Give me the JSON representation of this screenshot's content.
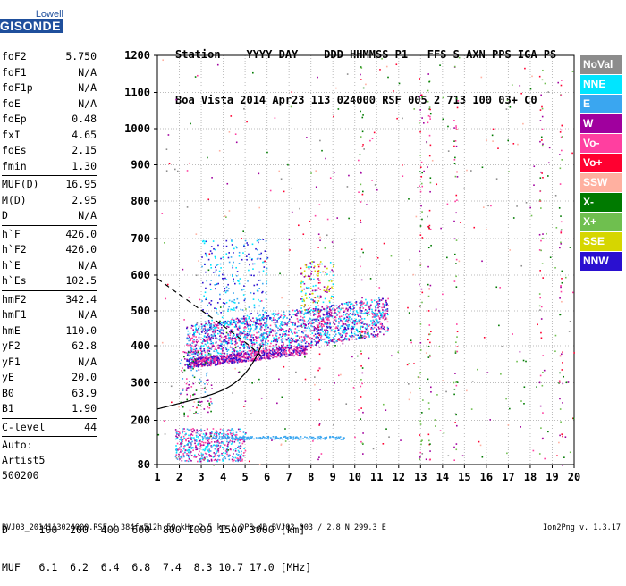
{
  "logo": {
    "line1": "Lowell",
    "line2": "DIGISONDE"
  },
  "header": {
    "line1": "Station    YYYY DAY    DDD HHMMSS P1   FFS S AXN PPS IGA PS",
    "line2": "Boa Vista 2014 Apr23 113 024000 RSF 005 2 713 100 03+ C0"
  },
  "params_group1": [
    {
      "k": "foF2",
      "v": "5.750"
    },
    {
      "k": "foF1",
      "v": "N/A"
    },
    {
      "k": "foF1p",
      "v": "N/A"
    },
    {
      "k": "foE",
      "v": "N/A"
    },
    {
      "k": "foEp",
      "v": "0.48"
    },
    {
      "k": "fxI",
      "v": "4.65"
    },
    {
      "k": "foEs",
      "v": "2.15"
    },
    {
      "k": "fmin",
      "v": "1.30"
    }
  ],
  "params_group2": [
    {
      "k": "MUF(D)",
      "v": "16.95"
    },
    {
      "k": "M(D)",
      "v": "2.95"
    },
    {
      "k": "D",
      "v": "N/A"
    }
  ],
  "params_group3": [
    {
      "k": "h`F",
      "v": "426.0"
    },
    {
      "k": "h`F2",
      "v": "426.0"
    },
    {
      "k": "h`E",
      "v": "N/A"
    },
    {
      "k": "h`Es",
      "v": "102.5"
    }
  ],
  "params_group4": [
    {
      "k": "hmF2",
      "v": "342.4"
    },
    {
      "k": "hmF1",
      "v": "N/A"
    },
    {
      "k": "hmE",
      "v": "110.0"
    },
    {
      "k": "yF2",
      "v": "62.8"
    },
    {
      "k": "yF1",
      "v": "N/A"
    },
    {
      "k": "yE",
      "v": "20.0"
    },
    {
      "k": "B0",
      "v": "63.9"
    },
    {
      "k": "B1",
      "v": "1.90"
    }
  ],
  "clevel": {
    "k": "C-level",
    "v": "44"
  },
  "auto": [
    "Auto:",
    "Artist5",
    "500200"
  ],
  "legend": [
    {
      "label": "NoVal",
      "color": "#8c8c8c"
    },
    {
      "label": "NNE",
      "color": "#00e5ff"
    },
    {
      "label": "E",
      "color": "#3aa6f0"
    },
    {
      "label": "W",
      "color": "#a0009e"
    },
    {
      "label": "Vo-",
      "color": "#ff3fa0"
    },
    {
      "label": "Vo+",
      "color": "#ff0030"
    },
    {
      "label": "SSW",
      "color": "#ffb0a0"
    },
    {
      "label": "X-",
      "color": "#007a00"
    },
    {
      "label": "X+",
      "color": "#6fbf4f"
    },
    {
      "label": "SSE",
      "color": "#d6d600"
    },
    {
      "label": "NNW",
      "color": "#2a10d0"
    }
  ],
  "distance_table": {
    "row1": "D     100  200  400  600  800 1000 1500 3000 [km]",
    "row2": "MUF   6.1  6.2  6.4  6.8  7.4  8.3 10.7 17.0 [MHz]"
  },
  "footer": {
    "left": "BVJ03_2014113024000.RSF / 384fx512h 50 kHz 2.5 km / DPS-4D BVJ03 003 / 2.8 N 299.3 E",
    "right": "Ion2Png v. 1.3.17"
  },
  "chart_data": {
    "type": "scatter",
    "xlim": [
      1,
      20
    ],
    "ylim": [
      80,
      1200
    ],
    "x_ticks": [
      1,
      2,
      3,
      4,
      5,
      6,
      7,
      8,
      9,
      10,
      11,
      12,
      13,
      14,
      15,
      16,
      17,
      18,
      19,
      20
    ],
    "y_ticks": [
      80,
      200,
      300,
      400,
      500,
      600,
      700,
      800,
      900,
      1000,
      1100,
      1200
    ],
    "grid": true,
    "xlabel": "",
    "ylabel": ""
  }
}
